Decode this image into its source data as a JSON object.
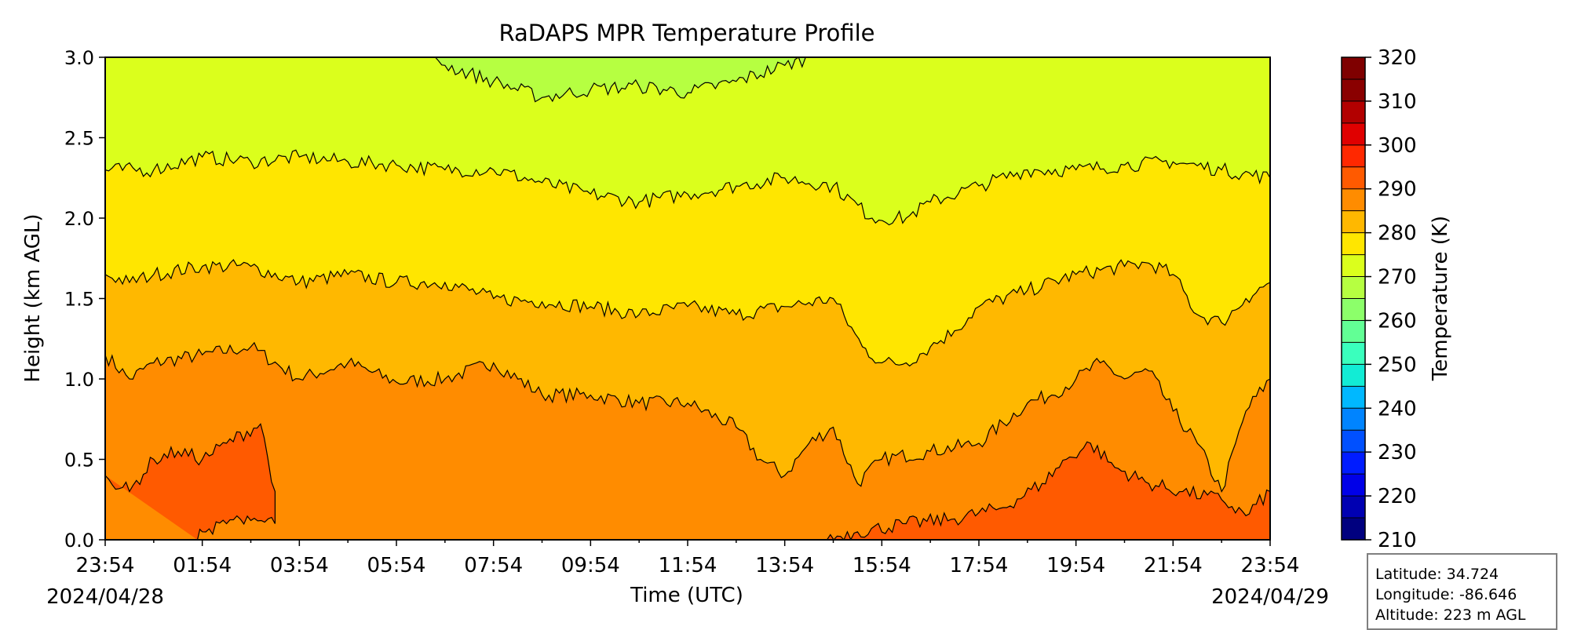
{
  "chart_data": {
    "type": "heatmap",
    "title": "RaDAPS MPR Temperature Profile",
    "xlabel": "Time (UTC)",
    "ylabel": "Height (km AGL)",
    "colorbar_label": "Temperature (K)",
    "x_ticks": [
      "23:54",
      "01:54",
      "03:54",
      "05:54",
      "07:54",
      "09:54",
      "11:54",
      "13:54",
      "15:54",
      "17:54",
      "19:54",
      "21:54",
      "23:54"
    ],
    "start_date": "2024/04/28",
    "end_date": "2024/04/29",
    "y_ticks": [
      0.0,
      0.5,
      1.0,
      1.5,
      2.0,
      2.5,
      3.0
    ],
    "ylim": [
      0,
      3
    ],
    "colorbar_ticks": [
      210,
      220,
      230,
      240,
      250,
      260,
      270,
      280,
      290,
      300,
      310,
      320
    ],
    "colorbar_range": [
      210,
      320
    ],
    "colorbar_levels": 22,
    "contour_interval_K": 5,
    "colors": [
      "#00007f",
      "#0000b2",
      "#0000e8",
      "#001cff",
      "#0050ff",
      "#0084ff",
      "#00b8ff",
      "#12ecd5",
      "#3affbd",
      "#62ff95",
      "#8cff6a",
      "#b6ff41",
      "#dbff1c",
      "#ffe600",
      "#ffb800",
      "#ff8c00",
      "#ff5a00",
      "#ff2800",
      "#e00000",
      "#b20000",
      "#8a0000",
      "#7f0000"
    ],
    "isotherms": [
      {
        "temperature_K": 290,
        "boundary": "lower",
        "height_km": [
          [
            0.0,
            0.4
          ],
          [
            0.5,
            0.3
          ],
          [
            1.0,
            0.5
          ],
          [
            1.5,
            0.55
          ],
          [
            2.0,
            0.5
          ],
          [
            2.5,
            0.6
          ],
          [
            3.2,
            0.72
          ],
          [
            3.5,
            0.3
          ],
          [
            3.5,
            0.1
          ],
          [
            3.0,
            0.12
          ],
          [
            2.5,
            0.1
          ],
          [
            2.0,
            0.05
          ],
          [
            1.9,
            0.0
          ]
        ]
      },
      {
        "temperature_K": 290,
        "boundary": "lower",
        "height_km": [
          [
            14.8,
            0.0
          ],
          [
            15.5,
            0.05
          ],
          [
            16.5,
            0.1
          ],
          [
            17.5,
            0.13
          ],
          [
            18.5,
            0.2
          ],
          [
            19.3,
            0.35
          ],
          [
            19.8,
            0.5
          ],
          [
            20.3,
            0.6
          ],
          [
            20.8,
            0.45
          ],
          [
            21.5,
            0.35
          ],
          [
            22.2,
            0.3
          ],
          [
            23.0,
            0.25
          ],
          [
            23.5,
            0.15
          ],
          [
            24.0,
            0.3
          ]
        ]
      },
      {
        "temperature_K": 285,
        "height_km": [
          [
            0.0,
            1.15
          ],
          [
            0.5,
            1.0
          ],
          [
            1.0,
            1.1
          ],
          [
            2.0,
            1.15
          ],
          [
            3.0,
            1.2
          ],
          [
            4.0,
            1.0
          ],
          [
            5.0,
            1.1
          ],
          [
            6.0,
            0.98
          ],
          [
            7.0,
            1.0
          ],
          [
            8.0,
            1.1
          ],
          [
            9.0,
            0.9
          ],
          [
            10.0,
            0.9
          ],
          [
            11.0,
            0.85
          ],
          [
            12.0,
            0.85
          ],
          [
            13.0,
            0.7
          ],
          [
            13.5,
            0.5
          ],
          [
            14.0,
            0.4
          ],
          [
            14.5,
            0.6
          ],
          [
            15.0,
            0.7
          ],
          [
            15.5,
            0.35
          ],
          [
            16.0,
            0.5
          ],
          [
            17.0,
            0.55
          ],
          [
            18.0,
            0.6
          ],
          [
            19.0,
            0.85
          ],
          [
            19.5,
            0.9
          ],
          [
            20.0,
            1.0
          ],
          [
            20.5,
            1.1
          ],
          [
            21.0,
            1.0
          ],
          [
            21.5,
            1.05
          ],
          [
            22.0,
            0.8
          ],
          [
            22.5,
            0.6
          ],
          [
            23.0,
            0.3
          ],
          [
            23.5,
            0.8
          ],
          [
            24.0,
            1.0
          ]
        ]
      },
      {
        "temperature_K": 280,
        "height_km": [
          [
            0.0,
            1.65
          ],
          [
            0.5,
            1.6
          ],
          [
            1.0,
            1.65
          ],
          [
            2.0,
            1.7
          ],
          [
            3.0,
            1.7
          ],
          [
            4.0,
            1.6
          ],
          [
            5.0,
            1.65
          ],
          [
            6.0,
            1.6
          ],
          [
            7.0,
            1.6
          ],
          [
            8.0,
            1.5
          ],
          [
            9.0,
            1.48
          ],
          [
            10.0,
            1.45
          ],
          [
            11.0,
            1.4
          ],
          [
            12.0,
            1.45
          ],
          [
            13.0,
            1.4
          ],
          [
            14.0,
            1.45
          ],
          [
            15.0,
            1.5
          ],
          [
            15.6,
            1.2
          ],
          [
            16.0,
            1.1
          ],
          [
            16.5,
            1.1
          ],
          [
            17.0,
            1.2
          ],
          [
            17.5,
            1.3
          ],
          [
            18.0,
            1.45
          ],
          [
            19.0,
            1.55
          ],
          [
            20.0,
            1.65
          ],
          [
            21.0,
            1.7
          ],
          [
            21.5,
            1.72
          ],
          [
            22.0,
            1.65
          ],
          [
            22.5,
            1.4
          ],
          [
            23.0,
            1.35
          ],
          [
            23.5,
            1.5
          ],
          [
            24.0,
            1.6
          ]
        ]
      },
      {
        "temperature_K": 275,
        "height_km": [
          [
            0.0,
            2.3
          ],
          [
            1.0,
            2.3
          ],
          [
            2.0,
            2.38
          ],
          [
            3.0,
            2.35
          ],
          [
            4.0,
            2.38
          ],
          [
            5.0,
            2.35
          ],
          [
            6.0,
            2.33
          ],
          [
            7.0,
            2.3
          ],
          [
            8.0,
            2.3
          ],
          [
            9.0,
            2.22
          ],
          [
            10.0,
            2.15
          ],
          [
            11.0,
            2.1
          ],
          [
            12.0,
            2.15
          ],
          [
            13.0,
            2.2
          ],
          [
            14.0,
            2.25
          ],
          [
            15.0,
            2.2
          ],
          [
            15.8,
            2.0
          ],
          [
            16.5,
            2.0
          ],
          [
            17.0,
            2.1
          ],
          [
            18.0,
            2.2
          ],
          [
            19.0,
            2.3
          ],
          [
            20.0,
            2.3
          ],
          [
            21.0,
            2.33
          ],
          [
            22.0,
            2.35
          ],
          [
            23.0,
            2.3
          ],
          [
            24.0,
            2.25
          ]
        ]
      },
      {
        "temperature_K": 270,
        "height_km": [
          [
            6.8,
            3.0
          ],
          [
            7.0,
            2.95
          ],
          [
            8.0,
            2.85
          ],
          [
            9.0,
            2.75
          ],
          [
            10.0,
            2.8
          ],
          [
            11.0,
            2.82
          ],
          [
            12.0,
            2.78
          ],
          [
            13.0,
            2.85
          ],
          [
            14.0,
            2.95
          ],
          [
            14.5,
            3.0
          ]
        ]
      }
    ],
    "info": {
      "latitude": "Latitude: 34.724",
      "longitude": "Longitude: -86.646",
      "altitude": "Altitude: 223 m AGL"
    }
  }
}
